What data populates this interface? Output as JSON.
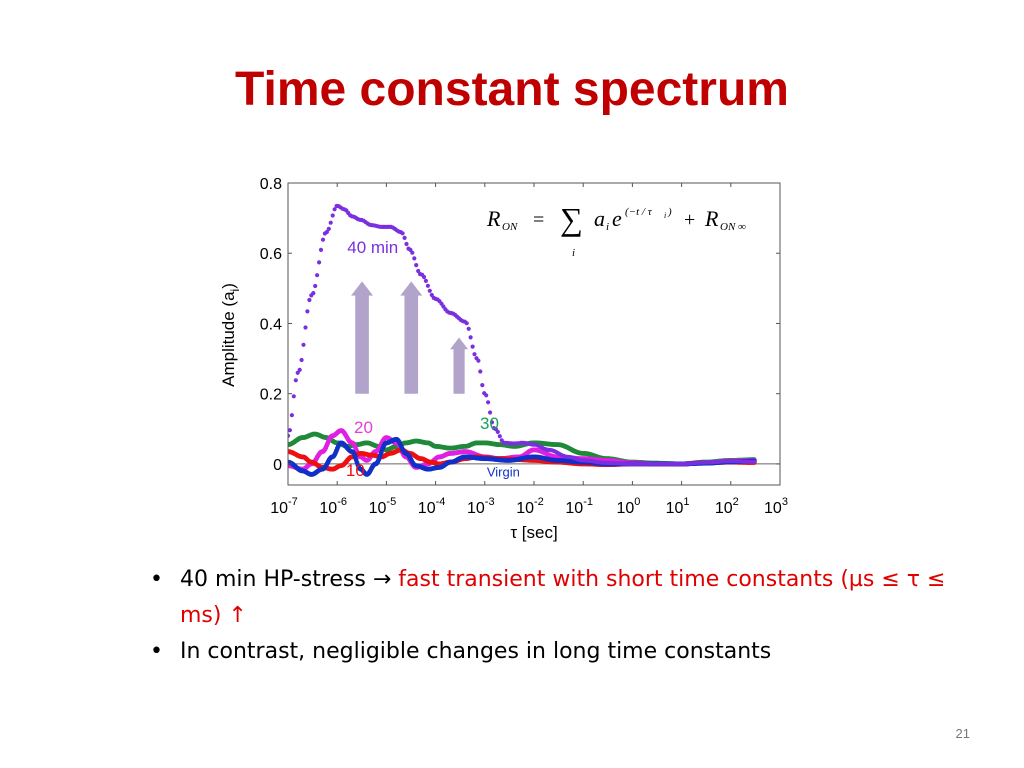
{
  "slide": {
    "title": "Time constant spectrum",
    "page_number": "21",
    "bullets": [
      {
        "lead": "40 min HP-stress → ",
        "highlight": "fast transient with short time constants (µs ≤ τ ≤ ms) ↑"
      },
      {
        "lead": "In contrast, negligible changes in long time constants",
        "highlight": ""
      }
    ]
  },
  "colors": {
    "title": "#c00000",
    "highlight": "#e00000",
    "arrow": "#b2a3cb"
  },
  "chart_data": {
    "type": "scatter",
    "title": "",
    "xlabel": "τ [sec]",
    "ylabel": "Amplitude (a",
    "ylabel_sub": "i",
    "ylabel_close": ")",
    "x_scale": "log",
    "xlim": [
      1e-07,
      1000
    ],
    "ylim": [
      -0.06,
      0.8
    ],
    "xticks": [
      {
        "base": "10",
        "exp": "-7"
      },
      {
        "base": "10",
        "exp": "-6"
      },
      {
        "base": "10",
        "exp": "-5"
      },
      {
        "base": "10",
        "exp": "-4"
      },
      {
        "base": "10",
        "exp": "-3"
      },
      {
        "base": "10",
        "exp": "-2"
      },
      {
        "base": "10",
        "exp": "-1"
      },
      {
        "base": "10",
        "exp": "0"
      },
      {
        "base": "10",
        "exp": "1"
      },
      {
        "base": "10",
        "exp": "2"
      },
      {
        "base": "10",
        "exp": "3"
      }
    ],
    "yticks": [
      "0",
      "0.2",
      "0.4",
      "0.6",
      "0.8"
    ],
    "ytick_values": [
      0,
      0.2,
      0.4,
      0.6,
      0.8
    ],
    "equation": {
      "lhs": "R",
      "lhs_sub": "ON",
      "eq": "=",
      "sum": "∑",
      "sum_index": "i",
      "term": "a",
      "term_sub": "i",
      "exp_base": "e",
      "exponent": "(−t / τ",
      "exponent_sub": "i",
      "exponent_close": " )",
      "plus": "+",
      "rhs": "R",
      "rhs_sub": "ON ∞"
    },
    "series": [
      {
        "name": "40 min",
        "color": "#7a2fe0",
        "label_color": "#7a2fe0",
        "x": [
          1e-07,
          1.6e-07,
          3e-07,
          6e-07,
          1e-06,
          1.4e-06,
          2e-06,
          3e-06,
          5e-06,
          8e-06,
          1.2e-05,
          2e-05,
          3e-05,
          5e-05,
          0.0001,
          0.0002,
          0.0004,
          0.0007,
          0.001,
          0.0016,
          0.0025,
          0.004,
          0.006,
          0.01,
          0.02,
          0.05,
          0.1,
          0.3,
          1,
          3,
          10,
          30,
          100,
          300
        ],
        "y": [
          0.08,
          0.26,
          0.48,
          0.66,
          0.735,
          0.725,
          0.705,
          0.695,
          0.68,
          0.675,
          0.675,
          0.66,
          0.61,
          0.54,
          0.47,
          0.43,
          0.405,
          0.3,
          0.2,
          0.1,
          0.06,
          0.058,
          0.06,
          0.055,
          0.04,
          0.02,
          0.01,
          0.003,
          0.0,
          0.0,
          0.0,
          0.004,
          0.008,
          0.006
        ]
      },
      {
        "name": "30",
        "color": "#1f8a3a",
        "label_color": "#1aa05a",
        "x": [
          1e-07,
          2e-07,
          3.5e-07,
          6e-07,
          1e-06,
          1.6e-06,
          2.5e-06,
          4e-06,
          7e-06,
          1e-05,
          1.6e-05,
          2.5e-05,
          4e-05,
          7e-05,
          0.0001,
          0.0002,
          0.0004,
          0.0007,
          0.001,
          0.002,
          0.004,
          0.01,
          0.03,
          0.1,
          0.3,
          1,
          3,
          10,
          30,
          100,
          300
        ],
        "y": [
          0.055,
          0.075,
          0.085,
          0.075,
          0.06,
          0.05,
          0.055,
          0.06,
          0.05,
          0.04,
          0.05,
          0.06,
          0.065,
          0.06,
          0.05,
          0.045,
          0.05,
          0.06,
          0.06,
          0.055,
          0.05,
          0.06,
          0.055,
          0.03,
          0.015,
          0.005,
          0.002,
          0.0,
          0.005,
          0.01,
          0.012
        ]
      },
      {
        "name": "20",
        "color": "#e020e0",
        "label_color": "#e040e0",
        "x": [
          1e-07,
          2e-07,
          3e-07,
          5e-07,
          8e-07,
          1.2e-06,
          2e-06,
          3e-06,
          4e-06,
          6e-06,
          1e-05,
          1.6e-05,
          2.5e-05,
          4e-05,
          7e-05,
          0.00012,
          0.0002,
          0.0004,
          0.001,
          0.002,
          0.005,
          0.01,
          0.03,
          0.1,
          0.3,
          1,
          3,
          10,
          30,
          100,
          300
        ],
        "y": [
          -0.005,
          -0.015,
          0.0,
          0.035,
          0.08,
          0.095,
          0.06,
          0.02,
          0.01,
          0.035,
          0.075,
          0.06,
          0.02,
          -0.01,
          0.0,
          0.02,
          0.03,
          0.035,
          0.02,
          0.015,
          0.02,
          0.04,
          0.02,
          0.015,
          0.01,
          0.003,
          0.0,
          0.0,
          0.003,
          0.008,
          0.01
        ]
      },
      {
        "name": "10",
        "color": "#ee1111",
        "label_color": "#ee1111",
        "x": [
          1e-07,
          2e-07,
          3e-07,
          5e-07,
          8e-07,
          1.2e-06,
          2e-06,
          3e-06,
          5e-06,
          8e-06,
          1.2e-05,
          2e-05,
          3e-05,
          5e-05,
          8e-05,
          0.00012,
          0.0002,
          0.0004,
          0.0007,
          0.001,
          0.002,
          0.005,
          0.01,
          0.03,
          0.1,
          0.3,
          1,
          3,
          10,
          30,
          100,
          300
        ],
        "y": [
          0.035,
          0.02,
          0.005,
          -0.01,
          -0.015,
          -0.005,
          0.02,
          0.03,
          0.025,
          0.02,
          0.03,
          0.04,
          0.03,
          0.015,
          0.005,
          0.0,
          0.005,
          0.015,
          0.02,
          0.018,
          0.015,
          0.012,
          0.01,
          0.005,
          0.0,
          -0.002,
          0.0,
          0.0,
          0.0,
          0.003,
          0.005,
          0.004
        ]
      },
      {
        "name": "Virgin",
        "color": "#1030c8",
        "label_color": "#1030c8",
        "x": [
          1e-07,
          2e-07,
          3e-07,
          5e-07,
          8e-07,
          1.2e-06,
          2e-06,
          3e-06,
          4e-06,
          6e-06,
          1e-05,
          1.6e-05,
          2.5e-05,
          4e-05,
          7e-05,
          0.00012,
          0.0002,
          0.0004,
          0.001,
          0.003,
          0.01,
          0.03,
          0.1,
          0.3,
          1,
          3,
          10,
          30,
          100,
          300
        ],
        "y": [
          0.005,
          -0.02,
          -0.03,
          -0.015,
          0.02,
          0.06,
          0.035,
          -0.015,
          -0.03,
          0.0,
          0.06,
          0.07,
          0.03,
          -0.005,
          -0.015,
          -0.01,
          0.005,
          0.02,
          0.015,
          0.01,
          0.02,
          0.01,
          0.005,
          0.0,
          0.0,
          0.0,
          0.0,
          0.002,
          0.006,
          0.008
        ]
      }
    ]
  }
}
